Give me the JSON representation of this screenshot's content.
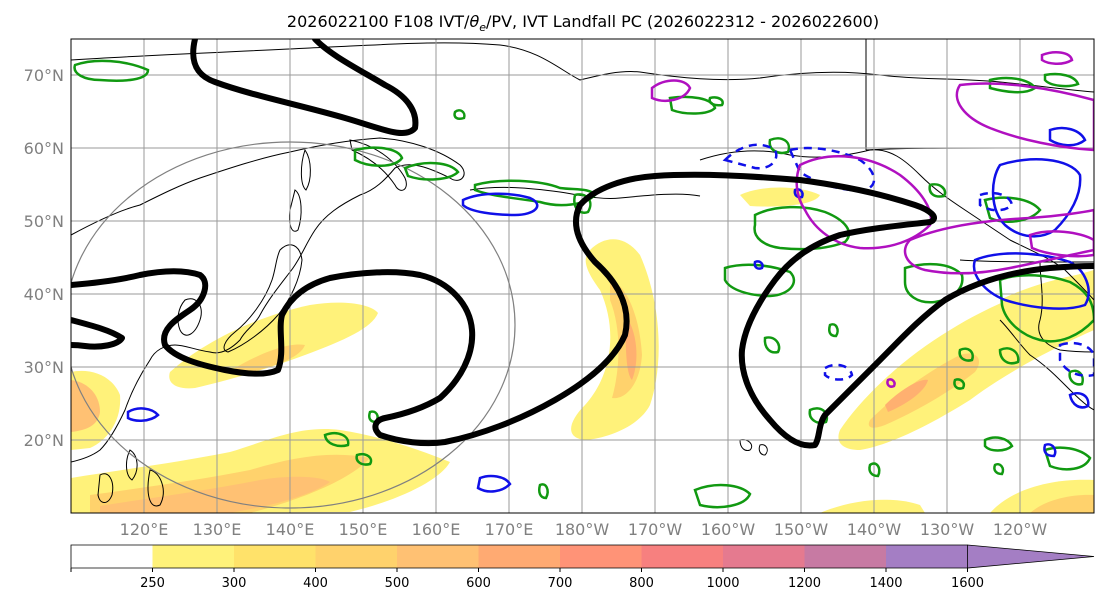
{
  "title_main": "2026022100 F108 IVT/",
  "title_theta": "θ",
  "title_sub": "e",
  "title_rest": "/PV, IVT Landfall PC (2026022312 - 2026022600)",
  "lat_labels": [
    "70°N",
    "60°N",
    "50°N",
    "40°N",
    "30°N",
    "20°N"
  ],
  "lon_labels": [
    "120°E",
    "130°E",
    "140°E",
    "150°E",
    "160°E",
    "170°E",
    "180°W",
    "170°W",
    "160°W",
    "150°W",
    "140°W",
    "130°W",
    "120°W"
  ],
  "colorbar": {
    "ticks": [
      "250",
      "300",
      "400",
      "500",
      "600",
      "700",
      "800",
      "1000",
      "1200",
      "1400",
      "1600"
    ],
    "colors": [
      "#ffffff",
      "#fff27a",
      "#ffe26a",
      "#ffd26c",
      "#ffc173",
      "#ffaa72",
      "#ff9377",
      "#f7807f",
      "#e57a8f",
      "#c77aa3",
      "#a47ec4"
    ]
  },
  "colors": {
    "ivt_fill_low": "#fff27a",
    "ivt_fill_mid": "#ffd26c",
    "ivt_fill_high": "#ffb070",
    "pv_contour": "#000000",
    "theta_green": "#119911",
    "theta_blue": "#1010e8",
    "theta_magenta": "#b010c0",
    "landfall_circle": "#808080"
  }
}
